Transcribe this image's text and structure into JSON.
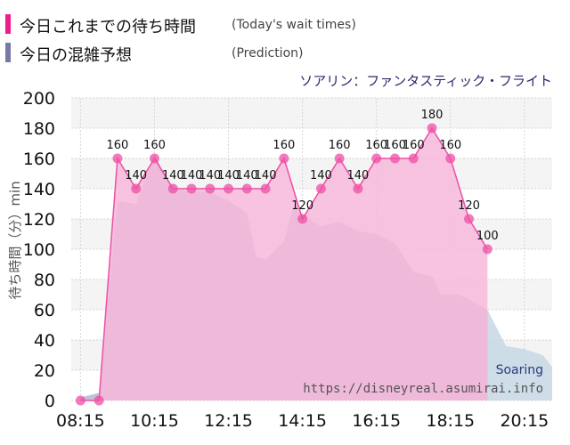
{
  "legend": {
    "actual_label": "今日これまでの待ち時間",
    "actual_en": "(Today's wait times)",
    "prediction_label": "今日の混雑予想",
    "prediction_en": "(Prediction)"
  },
  "attraction_name": "ソアリン：ファンタスティック・フライト",
  "watermark": {
    "name": "Soaring",
    "url": "https://disneyreal.asumirai.info"
  },
  "colors": {
    "actual_line": "#ee4fa6",
    "actual_fill": "#f7b8da",
    "prediction_fill": "#b9a8cc",
    "prediction_after": "#c9d9e4",
    "plot_band": "#f4f4f4",
    "grid": "#d5d5d5"
  },
  "chart_data": {
    "type": "area",
    "ylabel": "待ち時間（分）min",
    "ylim": [
      0,
      200
    ],
    "yticks": [
      0,
      20,
      40,
      60,
      80,
      100,
      120,
      140,
      160,
      180,
      200
    ],
    "xlim": [
      "08:00",
      "21:00"
    ],
    "xticks": [
      "08:15",
      "10:15",
      "12:15",
      "14:15",
      "16:15",
      "18:15",
      "20:15"
    ],
    "grid": true,
    "series": [
      {
        "name": "今日これまでの待ち時間",
        "data_labels": true,
        "points": [
          [
            "08:15",
            0
          ],
          [
            "08:45",
            0
          ],
          [
            "09:15",
            160
          ],
          [
            "09:45",
            140
          ],
          [
            "10:15",
            160
          ],
          [
            "10:45",
            140
          ],
          [
            "11:15",
            140
          ],
          [
            "11:45",
            140
          ],
          [
            "12:15",
            140
          ],
          [
            "12:45",
            140
          ],
          [
            "13:15",
            140
          ],
          [
            "13:45",
            160
          ],
          [
            "14:15",
            120
          ],
          [
            "14:45",
            140
          ],
          [
            "15:15",
            160
          ],
          [
            "15:45",
            140
          ],
          [
            "16:15",
            160
          ],
          [
            "16:45",
            160
          ],
          [
            "17:15",
            160
          ],
          [
            "17:45",
            180
          ],
          [
            "18:15",
            160
          ],
          [
            "18:45",
            120
          ],
          [
            "19:15",
            100
          ]
        ]
      },
      {
        "name": "今日の混雑予想",
        "points": [
          [
            "08:15",
            2
          ],
          [
            "08:45",
            5
          ],
          [
            "09:15",
            132
          ],
          [
            "09:45",
            130
          ],
          [
            "10:15",
            162
          ],
          [
            "10:45",
            140
          ],
          [
            "11:15",
            138
          ],
          [
            "11:45",
            138
          ],
          [
            "12:15",
            132
          ],
          [
            "12:45",
            124
          ],
          [
            "13:00",
            95
          ],
          [
            "13:15",
            93
          ],
          [
            "13:45",
            105
          ],
          [
            "14:00",
            127
          ],
          [
            "14:15",
            123
          ],
          [
            "14:45",
            115
          ],
          [
            "15:15",
            118
          ],
          [
            "15:45",
            112
          ],
          [
            "16:15",
            110
          ],
          [
            "16:45",
            104
          ],
          [
            "17:15",
            85
          ],
          [
            "17:45",
            82
          ],
          [
            "18:00",
            70
          ],
          [
            "18:30",
            70
          ],
          [
            "19:15",
            60
          ],
          [
            "19:45",
            36
          ],
          [
            "20:15",
            34
          ],
          [
            "20:45",
            30
          ],
          [
            "21:00",
            22
          ]
        ]
      }
    ]
  }
}
